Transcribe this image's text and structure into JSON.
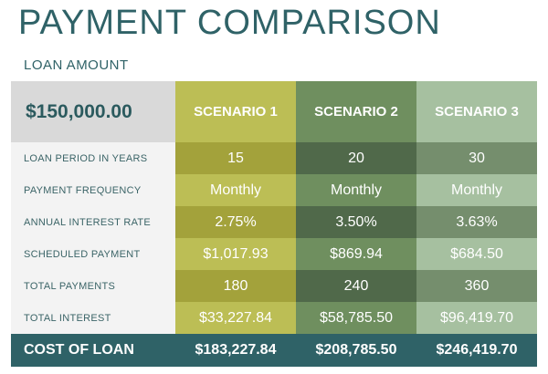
{
  "title": "PAYMENT COMPARISON",
  "subtitle": "LOAN AMOUNT",
  "loan_amount": "$150,000.00",
  "scenarios": [
    {
      "label": "SCENARIO 1"
    },
    {
      "label": "SCENARIO 2"
    },
    {
      "label": "SCENARIO 3"
    }
  ],
  "rows": [
    {
      "label": "LOAN PERIOD IN YEARS",
      "values": [
        "15",
        "20",
        "30"
      ]
    },
    {
      "label": "PAYMENT FREQUENCY",
      "values": [
        "Monthly",
        "Monthly",
        "Monthly"
      ]
    },
    {
      "label": "ANNUAL INTEREST RATE",
      "values": [
        "2.75%",
        "3.50%",
        "3.63%"
      ]
    },
    {
      "label": "SCHEDULED PAYMENT",
      "values": [
        "$1,017.93",
        "$869.94",
        "$684.50"
      ]
    },
    {
      "label": "TOTAL PAYMENTS",
      "values": [
        "180",
        "240",
        "360"
      ]
    },
    {
      "label": "TOTAL INTEREST",
      "values": [
        "$33,227.84",
        "$58,785.50",
        "$96,419.70"
      ]
    }
  ],
  "total": {
    "label": "COST OF LOAN",
    "values": [
      "$183,227.84",
      "$208,785.50",
      "$246,419.70"
    ]
  },
  "colors": {
    "title": "#2f6267",
    "scenario1": "#bcbe55",
    "scenario2": "#6f8f5f",
    "scenario3": "#a6c0a0",
    "total_row": "#2f6267"
  }
}
